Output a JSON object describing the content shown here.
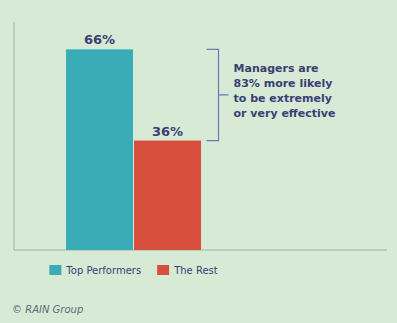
{
  "chart_data": {
    "type": "bar",
    "categories": [
      null
    ],
    "series": [
      {
        "name": "Top Performers",
        "color": "#3aacb8",
        "values": [
          66
        ],
        "value_labels": [
          "66%"
        ]
      },
      {
        "name": "The Rest",
        "color": "#d94f3d",
        "values": [
          36
        ],
        "value_labels": [
          "36%"
        ]
      }
    ],
    "ylim": [
      0,
      75
    ],
    "data_labels": true,
    "tick_labels": false,
    "grid": false,
    "legend": "bottom",
    "annotations": [
      "Managers are\n83% more likely\nto be extremely\nor very effective",
      "© RAIN Group"
    ]
  }
}
